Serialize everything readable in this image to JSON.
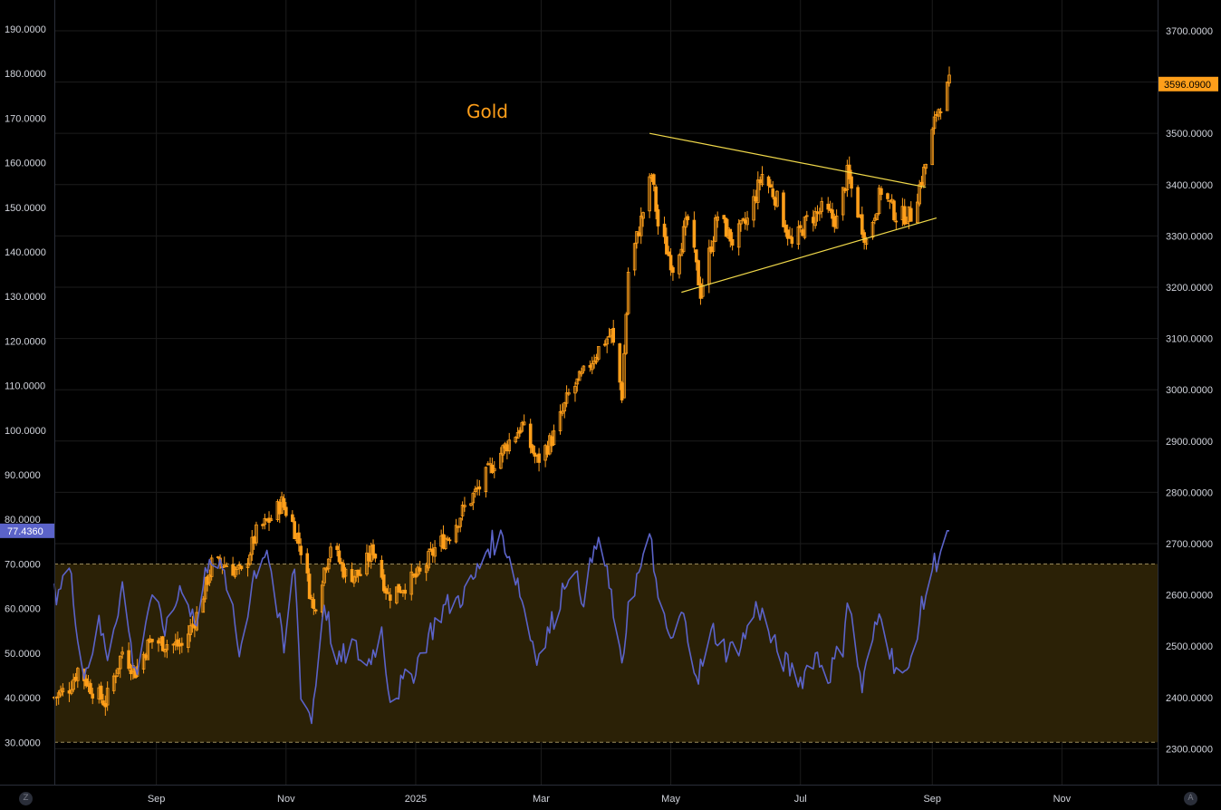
{
  "chart_data": {
    "type": "line",
    "title": "Gold",
    "x_axis": {
      "ticks": [
        "Sep",
        "Nov",
        "2025",
        "Mar",
        "May",
        "Jul",
        "Sep",
        "Nov"
      ],
      "range": [
        "2024-07-15",
        "2025-12-16"
      ]
    },
    "left_axis": {
      "ticks": [
        "30.0000",
        "40.0000",
        "50.0000",
        "60.0000",
        "70.0000",
        "80.0000",
        "90.0000",
        "100.0000",
        "110.0000",
        "120.0000",
        "130.0000",
        "140.0000",
        "150.0000",
        "160.0000",
        "170.0000",
        "180.0000",
        "190.0000"
      ],
      "range": [
        20.5,
        196.5
      ]
    },
    "right_axis": {
      "ticks": [
        "2300.0000",
        "2400.0000",
        "2500.0000",
        "2600.0000",
        "2700.0000",
        "2800.0000",
        "2900.0000",
        "3000.0000",
        "3100.0000",
        "3200.0000",
        "3300.0000",
        "3400.0000",
        "3500.0000",
        "3600.0000",
        "3700.0000"
      ],
      "range": [
        2230,
        3760
      ]
    },
    "grid": true,
    "series": [
      {
        "type": "candlestick",
        "axis": "right",
        "color": "#ff9f1a",
        "closes": [
          [
            "2024-07-15",
            2400
          ],
          [
            "2024-07-22",
            2420
          ],
          [
            "2024-07-26",
            2455
          ],
          [
            "2024-08-02",
            2415
          ],
          [
            "2024-08-08",
            2390
          ],
          [
            "2024-08-16",
            2490
          ],
          [
            "2024-08-22",
            2450
          ],
          [
            "2024-08-29",
            2510
          ],
          [
            "2024-09-06",
            2505
          ],
          [
            "2024-09-13",
            2500
          ],
          [
            "2024-09-20",
            2560
          ],
          [
            "2024-09-27",
            2660
          ],
          [
            "2024-10-04",
            2660
          ],
          [
            "2024-10-11",
            2640
          ],
          [
            "2024-10-18",
            2720
          ],
          [
            "2024-10-25",
            2750
          ],
          [
            "2024-10-30",
            2780
          ],
          [
            "2024-11-04",
            2740
          ],
          [
            "2024-11-08",
            2690
          ],
          [
            "2024-11-14",
            2570
          ],
          [
            "2024-11-22",
            2700
          ],
          [
            "2024-11-29",
            2640
          ],
          [
            "2024-12-06",
            2640
          ],
          [
            "2024-12-12",
            2690
          ],
          [
            "2024-12-19",
            2600
          ],
          [
            "2024-12-27",
            2620
          ],
          [
            "2025-01-03",
            2640
          ],
          [
            "2025-01-10",
            2690
          ],
          [
            "2025-01-17",
            2720
          ],
          [
            "2025-01-24",
            2770
          ],
          [
            "2025-01-31",
            2810
          ],
          [
            "2025-02-07",
            2860
          ],
          [
            "2025-02-14",
            2900
          ],
          [
            "2025-02-20",
            2930
          ],
          [
            "2025-02-27",
            2860
          ],
          [
            "2025-03-07",
            2910
          ],
          [
            "2025-03-14",
            2990
          ],
          [
            "2025-03-21",
            3030
          ],
          [
            "2025-03-28",
            3080
          ],
          [
            "2025-04-03",
            3110
          ],
          [
            "2025-04-08",
            2990
          ],
          [
            "2025-04-11",
            3230
          ],
          [
            "2025-04-17",
            3330
          ],
          [
            "2025-04-22",
            3420
          ],
          [
            "2025-04-25",
            3320
          ],
          [
            "2025-05-02",
            3240
          ],
          [
            "2025-05-09",
            3330
          ],
          [
            "2025-05-15",
            3190
          ],
          [
            "2025-05-23",
            3340
          ],
          [
            "2025-05-30",
            3290
          ],
          [
            "2025-06-06",
            3330
          ],
          [
            "2025-06-13",
            3420
          ],
          [
            "2025-06-20",
            3370
          ],
          [
            "2025-06-27",
            3280
          ],
          [
            "2025-07-04",
            3330
          ],
          [
            "2025-07-11",
            3350
          ],
          [
            "2025-07-18",
            3330
          ],
          [
            "2025-07-23",
            3420
          ],
          [
            "2025-08-01",
            3290
          ],
          [
            "2025-08-08",
            3390
          ],
          [
            "2025-08-15",
            3340
          ],
          [
            "2025-08-22",
            3340
          ],
          [
            "2025-08-29",
            3440
          ],
          [
            "2025-09-03",
            3540
          ],
          [
            "2025-09-09",
            3596.09
          ]
        ]
      },
      {
        "type": "line",
        "axis": "left",
        "color": "#5b63c9",
        "points": [
          [
            "2024-07-15",
            63
          ],
          [
            "2024-07-22",
            69
          ],
          [
            "2024-07-29",
            45
          ],
          [
            "2024-08-05",
            56
          ],
          [
            "2024-08-09",
            50
          ],
          [
            "2024-08-16",
            65
          ],
          [
            "2024-08-22",
            45
          ],
          [
            "2024-08-29",
            62
          ],
          [
            "2024-09-06",
            55
          ],
          [
            "2024-09-13",
            66
          ],
          [
            "2024-09-20",
            56
          ],
          [
            "2024-09-26",
            73
          ],
          [
            "2024-10-04",
            66
          ],
          [
            "2024-10-10",
            50
          ],
          [
            "2024-10-17",
            68
          ],
          [
            "2024-10-23",
            74
          ],
          [
            "2024-10-31",
            50
          ],
          [
            "2024-11-05",
            70
          ],
          [
            "2024-11-08",
            42
          ],
          [
            "2024-11-13",
            35
          ],
          [
            "2024-11-19",
            62
          ],
          [
            "2024-11-25",
            47
          ],
          [
            "2024-12-02",
            52
          ],
          [
            "2024-12-09",
            47
          ],
          [
            "2024-12-16",
            55
          ],
          [
            "2024-12-20",
            40
          ],
          [
            "2024-12-30",
            45
          ],
          [
            "2025-01-07",
            54
          ],
          [
            "2025-01-14",
            60
          ],
          [
            "2025-01-21",
            62
          ],
          [
            "2025-01-28",
            66
          ],
          [
            "2025-02-04",
            74
          ],
          [
            "2025-02-11",
            76
          ],
          [
            "2025-02-18",
            66
          ],
          [
            "2025-02-24",
            54
          ],
          [
            "2025-02-28",
            49
          ],
          [
            "2025-03-07",
            58
          ],
          [
            "2025-03-14",
            69
          ],
          [
            "2025-03-21",
            63
          ],
          [
            "2025-03-28",
            76
          ],
          [
            "2025-04-04",
            60
          ],
          [
            "2025-04-08",
            45
          ],
          [
            "2025-04-11",
            62
          ],
          [
            "2025-04-18",
            70
          ],
          [
            "2025-04-22",
            76
          ],
          [
            "2025-04-25",
            60
          ],
          [
            "2025-05-02",
            52
          ],
          [
            "2025-05-06",
            59
          ],
          [
            "2025-05-14",
            45
          ],
          [
            "2025-05-21",
            55
          ],
          [
            "2025-05-28",
            50
          ],
          [
            "2025-06-04",
            53
          ],
          [
            "2025-06-11",
            61
          ],
          [
            "2025-06-18",
            52
          ],
          [
            "2025-06-25",
            47
          ],
          [
            "2025-07-01",
            44
          ],
          [
            "2025-07-08",
            50
          ],
          [
            "2025-07-14",
            45
          ],
          [
            "2025-07-21",
            52
          ],
          [
            "2025-07-23",
            63
          ],
          [
            "2025-07-30",
            42
          ],
          [
            "2025-08-04",
            53
          ],
          [
            "2025-08-08",
            60
          ],
          [
            "2025-08-13",
            49
          ],
          [
            "2025-08-20",
            44
          ],
          [
            "2025-08-25",
            56
          ],
          [
            "2025-09-01",
            69
          ],
          [
            "2025-09-09",
            77.436
          ]
        ]
      }
    ],
    "band": {
      "axis": "left",
      "from": 30,
      "to": 70
    },
    "trendlines": [
      {
        "axis": "right",
        "from": [
          "2025-04-21",
          3500
        ],
        "to": [
          "2025-08-29",
          3395
        ]
      },
      {
        "axis": "right",
        "from": [
          "2025-05-06",
          3190
        ],
        "to": [
          "2025-09-03",
          3335
        ]
      }
    ],
    "left_last_value": "77.4360",
    "right_last_value": "3596.0900"
  },
  "colors": {
    "background": "#000000",
    "candles": "#ff9f1a",
    "rsi": "#5b63c9",
    "band_fill": "#2b2106",
    "trendline": "#f0d84a",
    "grid": "#1c1c1c"
  },
  "footer": {
    "left_button": "Z",
    "right_button": "A"
  }
}
